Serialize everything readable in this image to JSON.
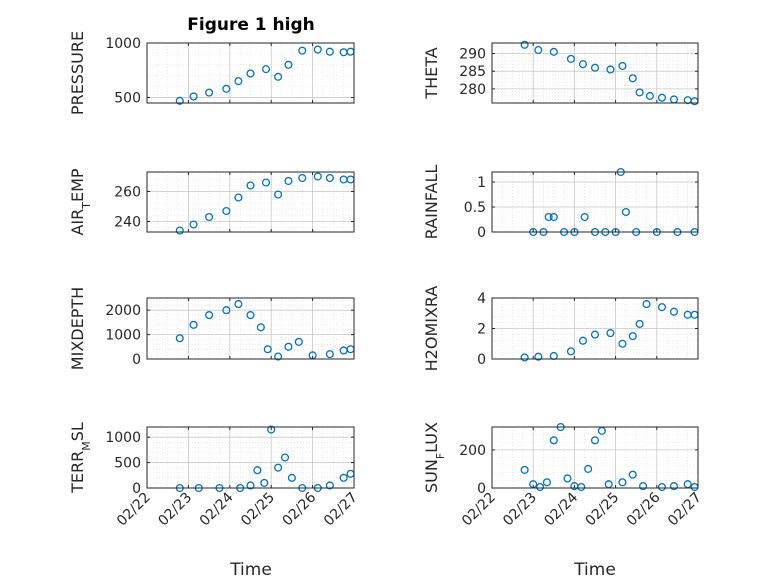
{
  "figure_title": "Figure 1 high",
  "colors": {
    "marker": "#0072BD",
    "axis": "#262626",
    "grid": "#dcdcdc"
  },
  "chart_data": [
    {
      "type": "scatter",
      "ylabel": "PRESSURE",
      "ylim": [
        450,
        1000
      ],
      "yticks": [
        500,
        1000
      ],
      "x": [
        "02/22 19:00",
        "02/23 03:00",
        "02/23 12:00",
        "02/23 22:00",
        "02/24 05:00",
        "02/24 12:00",
        "02/24 21:00",
        "02/25 04:00",
        "02/25 10:00",
        "02/25 18:00",
        "02/26 03:00",
        "02/26 10:00",
        "02/26 18:00",
        "02/26 22:00"
      ],
      "y": [
        470,
        510,
        545,
        580,
        650,
        720,
        760,
        690,
        800,
        930,
        940,
        920,
        915,
        920
      ]
    },
    {
      "type": "scatter",
      "ylabel": "THETA",
      "ylim": [
        276,
        293
      ],
      "yticks": [
        280,
        285,
        290
      ],
      "x": [
        "02/22 19:00",
        "02/23 03:00",
        "02/23 12:00",
        "02/23 22:00",
        "02/24 05:00",
        "02/24 12:00",
        "02/24 21:00",
        "02/25 04:00",
        "02/25 10:00",
        "02/25 14:00",
        "02/25 20:00",
        "02/26 03:00",
        "02/26 10:00",
        "02/26 18:00",
        "02/26 22:00"
      ],
      "y": [
        292.5,
        291.0,
        290.5,
        288.5,
        287.0,
        286.0,
        285.5,
        286.5,
        283.0,
        279.0,
        278.0,
        277.5,
        277.0,
        276.8,
        276.5
      ]
    },
    {
      "type": "scatter",
      "ylabel": "AIR_TEMP",
      "ylim": [
        233,
        273
      ],
      "yticks": [
        240,
        260
      ],
      "x": [
        "02/22 19:00",
        "02/23 03:00",
        "02/23 12:00",
        "02/23 22:00",
        "02/24 05:00",
        "02/24 12:00",
        "02/24 21:00",
        "02/25 04:00",
        "02/25 10:00",
        "02/25 18:00",
        "02/26 03:00",
        "02/26 10:00",
        "02/26 18:00",
        "02/26 22:00"
      ],
      "y": [
        234,
        238,
        243,
        247,
        256,
        264,
        266,
        258,
        267,
        269,
        270,
        269,
        268,
        268
      ]
    },
    {
      "type": "scatter",
      "ylabel": "RAINFALL",
      "ylim": [
        0,
        1.2
      ],
      "yticks": [
        0,
        0.5,
        1
      ],
      "x": [
        "02/23 00:00",
        "02/23 06:00",
        "02/23 09:00",
        "02/23 12:00",
        "02/23 18:00",
        "02/24 00:00",
        "02/24 06:00",
        "02/24 12:00",
        "02/24 18:00",
        "02/25 00:00",
        "02/25 03:00",
        "02/25 06:00",
        "02/25 12:00",
        "02/26 00:00",
        "02/26 12:00",
        "02/26 22:00"
      ],
      "y": [
        0,
        0,
        0.3,
        0.3,
        0,
        0,
        0.3,
        0,
        0,
        0,
        1.2,
        0.4,
        0,
        0,
        0,
        0
      ]
    },
    {
      "type": "scatter",
      "ylabel": "MIXDEPTH",
      "ylim": [
        0,
        2500
      ],
      "yticks": [
        0,
        1000,
        2000
      ],
      "x": [
        "02/22 19:00",
        "02/23 03:00",
        "02/23 12:00",
        "02/23 22:00",
        "02/24 05:00",
        "02/24 12:00",
        "02/24 18:00",
        "02/24 22:00",
        "02/25 04:00",
        "02/25 10:00",
        "02/25 16:00",
        "02/26 00:00",
        "02/26 10:00",
        "02/26 18:00",
        "02/26 22:00"
      ],
      "y": [
        850,
        1400,
        1800,
        2000,
        2250,
        1800,
        1300,
        400,
        100,
        500,
        700,
        150,
        200,
        350,
        400
      ]
    },
    {
      "type": "scatter",
      "ylabel": "H2OMIXRA",
      "ylim": [
        0,
        4
      ],
      "yticks": [
        0,
        2,
        4
      ],
      "x": [
        "02/22 19:00",
        "02/23 03:00",
        "02/23 12:00",
        "02/23 22:00",
        "02/24 05:00",
        "02/24 12:00",
        "02/24 21:00",
        "02/25 04:00",
        "02/25 10:00",
        "02/25 14:00",
        "02/25 18:00",
        "02/26 03:00",
        "02/26 10:00",
        "02/26 18:00",
        "02/26 22:00"
      ],
      "y": [
        0.1,
        0.15,
        0.2,
        0.5,
        1.2,
        1.6,
        1.7,
        1.0,
        1.5,
        2.3,
        3.6,
        3.4,
        3.1,
        2.9,
        2.9
      ]
    },
    {
      "type": "scatter",
      "ylabel": "TERR_MSL",
      "ylim": [
        0,
        1200
      ],
      "yticks": [
        0,
        500,
        1000
      ],
      "x": [
        "02/22 19:00",
        "02/23 06:00",
        "02/23 18:00",
        "02/24 06:00",
        "02/24 12:00",
        "02/24 16:00",
        "02/24 20:00",
        "02/25 00:00",
        "02/25 04:00",
        "02/25 08:00",
        "02/25 12:00",
        "02/25 18:00",
        "02/26 03:00",
        "02/26 10:00",
        "02/26 18:00",
        "02/26 22:00"
      ],
      "y": [
        0,
        0,
        0,
        0,
        50,
        350,
        100,
        1150,
        400,
        600,
        200,
        0,
        0,
        50,
        200,
        280
      ]
    },
    {
      "type": "scatter",
      "ylabel": "SUN_FLUX",
      "ylim": [
        0,
        320
      ],
      "yticks": [
        0,
        200
      ],
      "x": [
        "02/22 19:00",
        "02/23 00:00",
        "02/23 04:00",
        "02/23 08:00",
        "02/23 12:00",
        "02/23 16:00",
        "02/23 20:00",
        "02/24 00:00",
        "02/24 04:00",
        "02/24 08:00",
        "02/24 12:00",
        "02/24 16:00",
        "02/24 20:00",
        "02/25 04:00",
        "02/25 10:00",
        "02/25 16:00",
        "02/26 03:00",
        "02/26 10:00",
        "02/26 18:00",
        "02/26 22:00"
      ],
      "y": [
        95,
        20,
        5,
        30,
        250,
        320,
        50,
        10,
        5,
        100,
        250,
        300,
        20,
        30,
        70,
        10,
        5,
        10,
        20,
        5
      ]
    }
  ],
  "x_axis": {
    "range": [
      "02/22 00:00",
      "02/27 00:00"
    ],
    "ticks": [
      "02/22",
      "02/23",
      "02/24",
      "02/25",
      "02/26",
      "02/27"
    ],
    "label": "Time"
  }
}
